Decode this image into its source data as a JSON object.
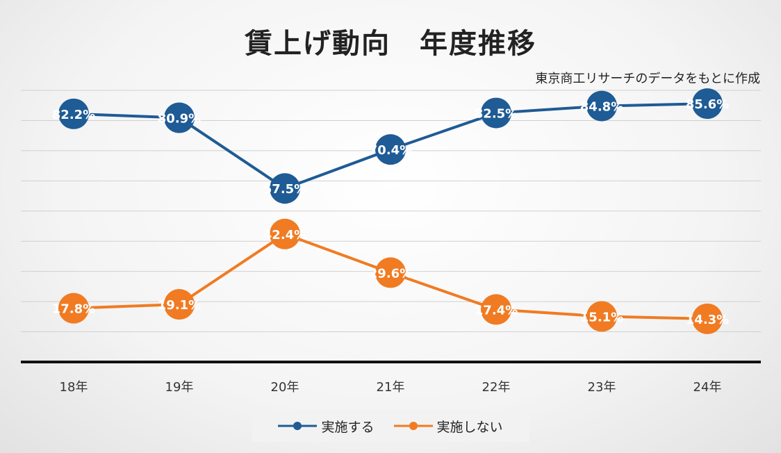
{
  "chart_data": {
    "type": "line",
    "title": "賃上げ動向　年度推移",
    "annotation": "東京商工リサーチのデータをもとに作成",
    "categories": [
      "18年",
      "19年",
      "20年",
      "21年",
      "22年",
      "23年",
      "24年"
    ],
    "series": [
      {
        "name": "実施する",
        "color": "#1f5b95",
        "values": [
          82.2,
          80.9,
          57.5,
          70.4,
          82.5,
          84.8,
          85.6
        ]
      },
      {
        "name": "実施しない",
        "color": "#f07b22",
        "values": [
          17.8,
          19.1,
          42.4,
          29.6,
          17.4,
          15.1,
          14.3
        ]
      }
    ],
    "value_suffix": "%",
    "ylim": [
      0,
      90
    ],
    "grid_step": 10,
    "grid": true,
    "legend_position": "bottom"
  }
}
